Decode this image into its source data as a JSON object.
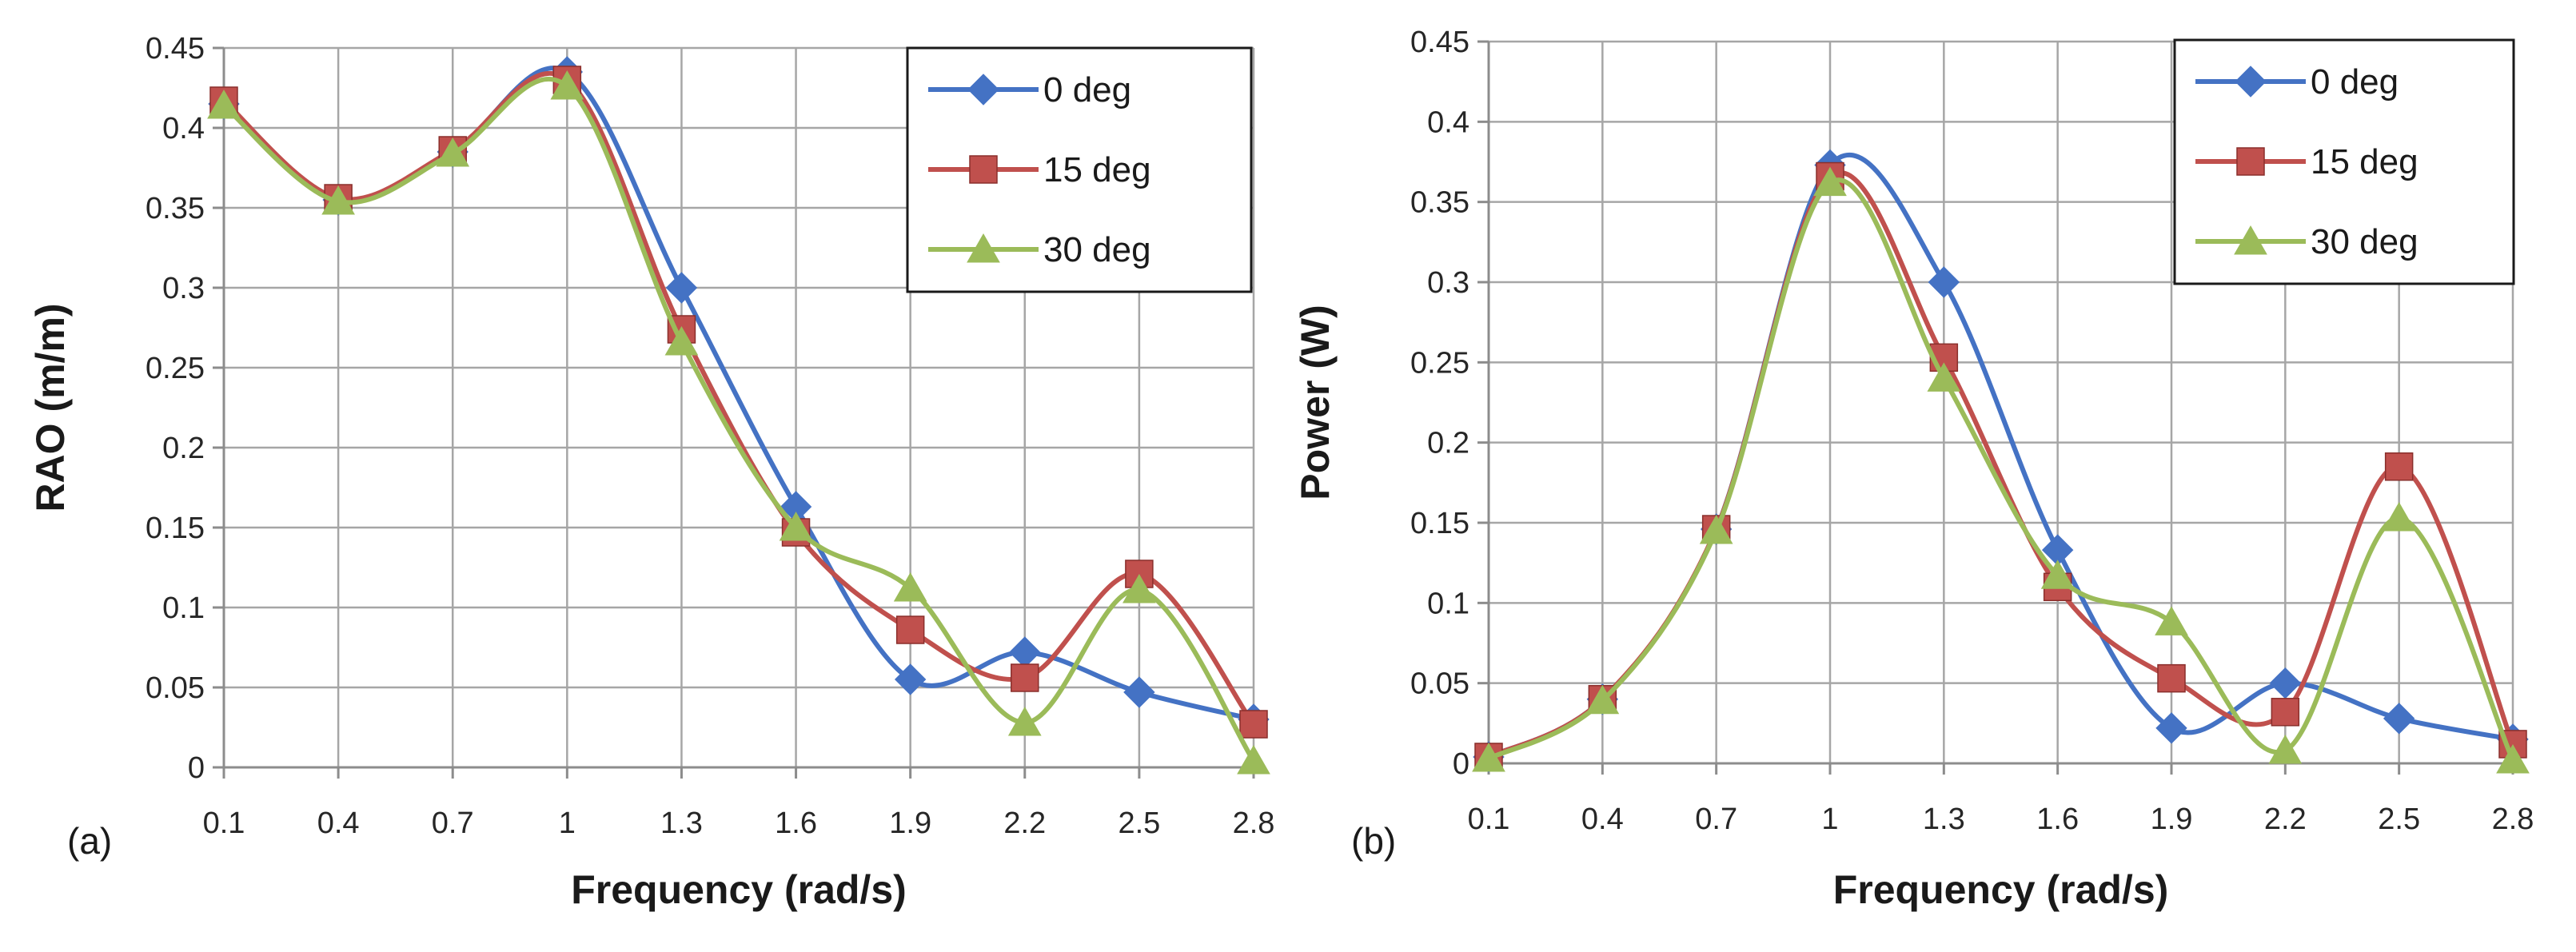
{
  "chart_data": [
    {
      "type": "line",
      "panel_label": "(a)",
      "xlabel": "Frequency (rad/s)",
      "ylabel": "RAO (m/m)",
      "categories": [
        "0.1",
        "0.4",
        "0.7",
        "1",
        "1.3",
        "1.6",
        "1.9",
        "2.2",
        "2.5",
        "2.8"
      ],
      "ylim": [
        0,
        0.45
      ],
      "yticks": [
        "0",
        "0.05",
        "0.1",
        "0.15",
        "0.2",
        "0.25",
        "0.3",
        "0.35",
        "0.4",
        "0.45"
      ],
      "grid": true,
      "legend_position": "top-right",
      "series": [
        {
          "name": "0 deg",
          "marker": "diamond",
          "color": "#4472C4",
          "values": [
            0.415,
            0.355,
            0.385,
            0.435,
            0.3,
            0.163,
            0.055,
            0.072,
            0.047,
            0.03
          ]
        },
        {
          "name": "15 deg",
          "marker": "square",
          "color": "#C0504D",
          "values": [
            0.417,
            0.356,
            0.386,
            0.43,
            0.274,
            0.147,
            0.086,
            0.056,
            0.121,
            0.027
          ]
        },
        {
          "name": "30 deg",
          "marker": "triangle",
          "color": "#9BBB59",
          "values": [
            0.414,
            0.354,
            0.384,
            0.426,
            0.266,
            0.15,
            0.112,
            0.028,
            0.111,
            0.004
          ]
        }
      ]
    },
    {
      "type": "line",
      "panel_label": "(b)",
      "xlabel": "Frequency (rad/s)",
      "ylabel": "Power (W)",
      "categories": [
        "0.1",
        "0.4",
        "0.7",
        "1",
        "1.3",
        "1.6",
        "1.9",
        "2.2",
        "2.5",
        "2.8"
      ],
      "ylim": [
        0,
        0.45
      ],
      "yticks": [
        "0",
        "0.05",
        "0.1",
        "0.15",
        "0.2",
        "0.25",
        "0.3",
        "0.35",
        "0.4",
        "0.45"
      ],
      "grid": true,
      "legend_position": "top-right",
      "series": [
        {
          "name": "0 deg",
          "marker": "diamond",
          "color": "#4472C4",
          "values": [
            0.004,
            0.04,
            0.146,
            0.373,
            0.3,
            0.133,
            0.022,
            0.05,
            0.028,
            0.015
          ]
        },
        {
          "name": "15 deg",
          "marker": "square",
          "color": "#C0504D",
          "values": [
            0.004,
            0.04,
            0.146,
            0.366,
            0.253,
            0.11,
            0.053,
            0.032,
            0.185,
            0.012
          ]
        },
        {
          "name": "30 deg",
          "marker": "triangle",
          "color": "#9BBB59",
          "values": [
            0.003,
            0.039,
            0.145,
            0.362,
            0.24,
            0.117,
            0.088,
            0.008,
            0.153,
            0.002
          ]
        }
      ]
    }
  ]
}
